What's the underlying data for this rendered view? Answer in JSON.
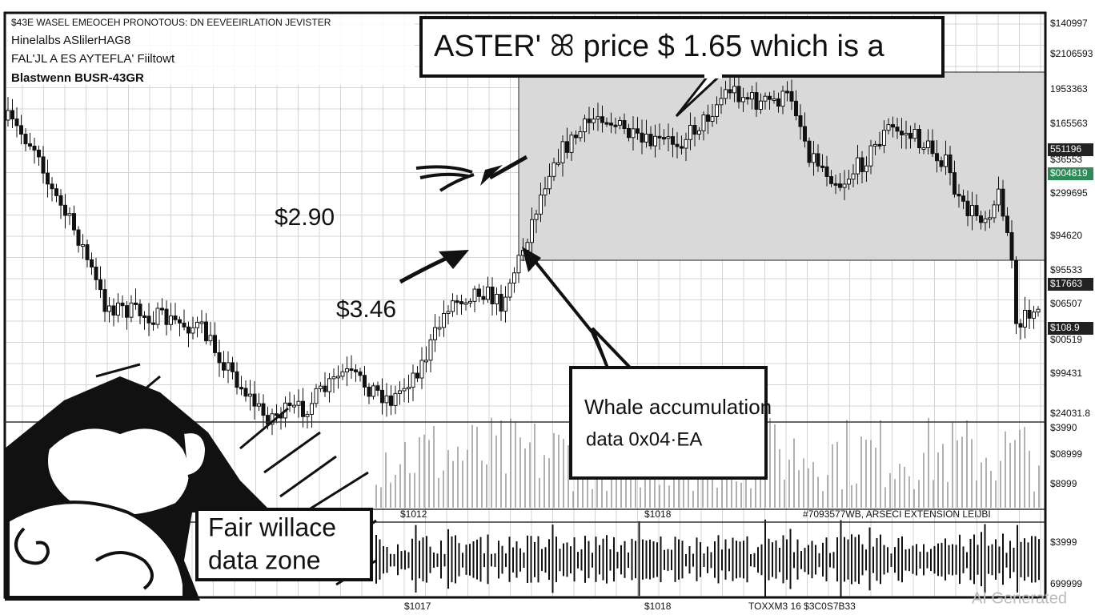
{
  "header": {
    "line1": "$43E WASEL EMEOCEH PRONOTOUS: DN EEVEEIRLATION JEVISTER",
    "line2": "Hinelalbs ASlilerHAG8",
    "line3": "FAL'JL A ES AYTEFLA' Fiiltowt",
    "line4": "Blastwenn BUSR-43GR"
  },
  "title_box": "ASTER' ꕤ price $ 1.65 which is a",
  "annotations": {
    "price_a": "$2.90",
    "price_b": "$3.46",
    "whale_line1": "Whale accumulation",
    "whale_line2": "data    0x04·EA",
    "zone_line1": "Fair willace",
    "zone_line2": "data zone"
  },
  "price_axis": [
    "$140997",
    "$2106593",
    "1953363",
    "$165563",
    "551196",
    "$36553",
    "$004819",
    "$299695",
    "$94620",
    "$95533",
    "$17663",
    "$06507",
    "$108.9",
    "$00519",
    "$99431",
    "$24031.8"
  ],
  "volume_axis": [
    "$3990",
    "$08999",
    "$8999"
  ],
  "indicator_axis": [
    "$3999",
    "699999"
  ],
  "time_axis": {
    "vol_left": "$1012",
    "vol_mid": "$1018",
    "vol_right": "#7093577WB, ARSECI EXTENSION LEIJBI",
    "ind_left": "$1017",
    "ind_mid": "$1018",
    "ind_right": "TOXXM3 16 $3C0S7B33"
  },
  "watermark": "AI Generated"
}
